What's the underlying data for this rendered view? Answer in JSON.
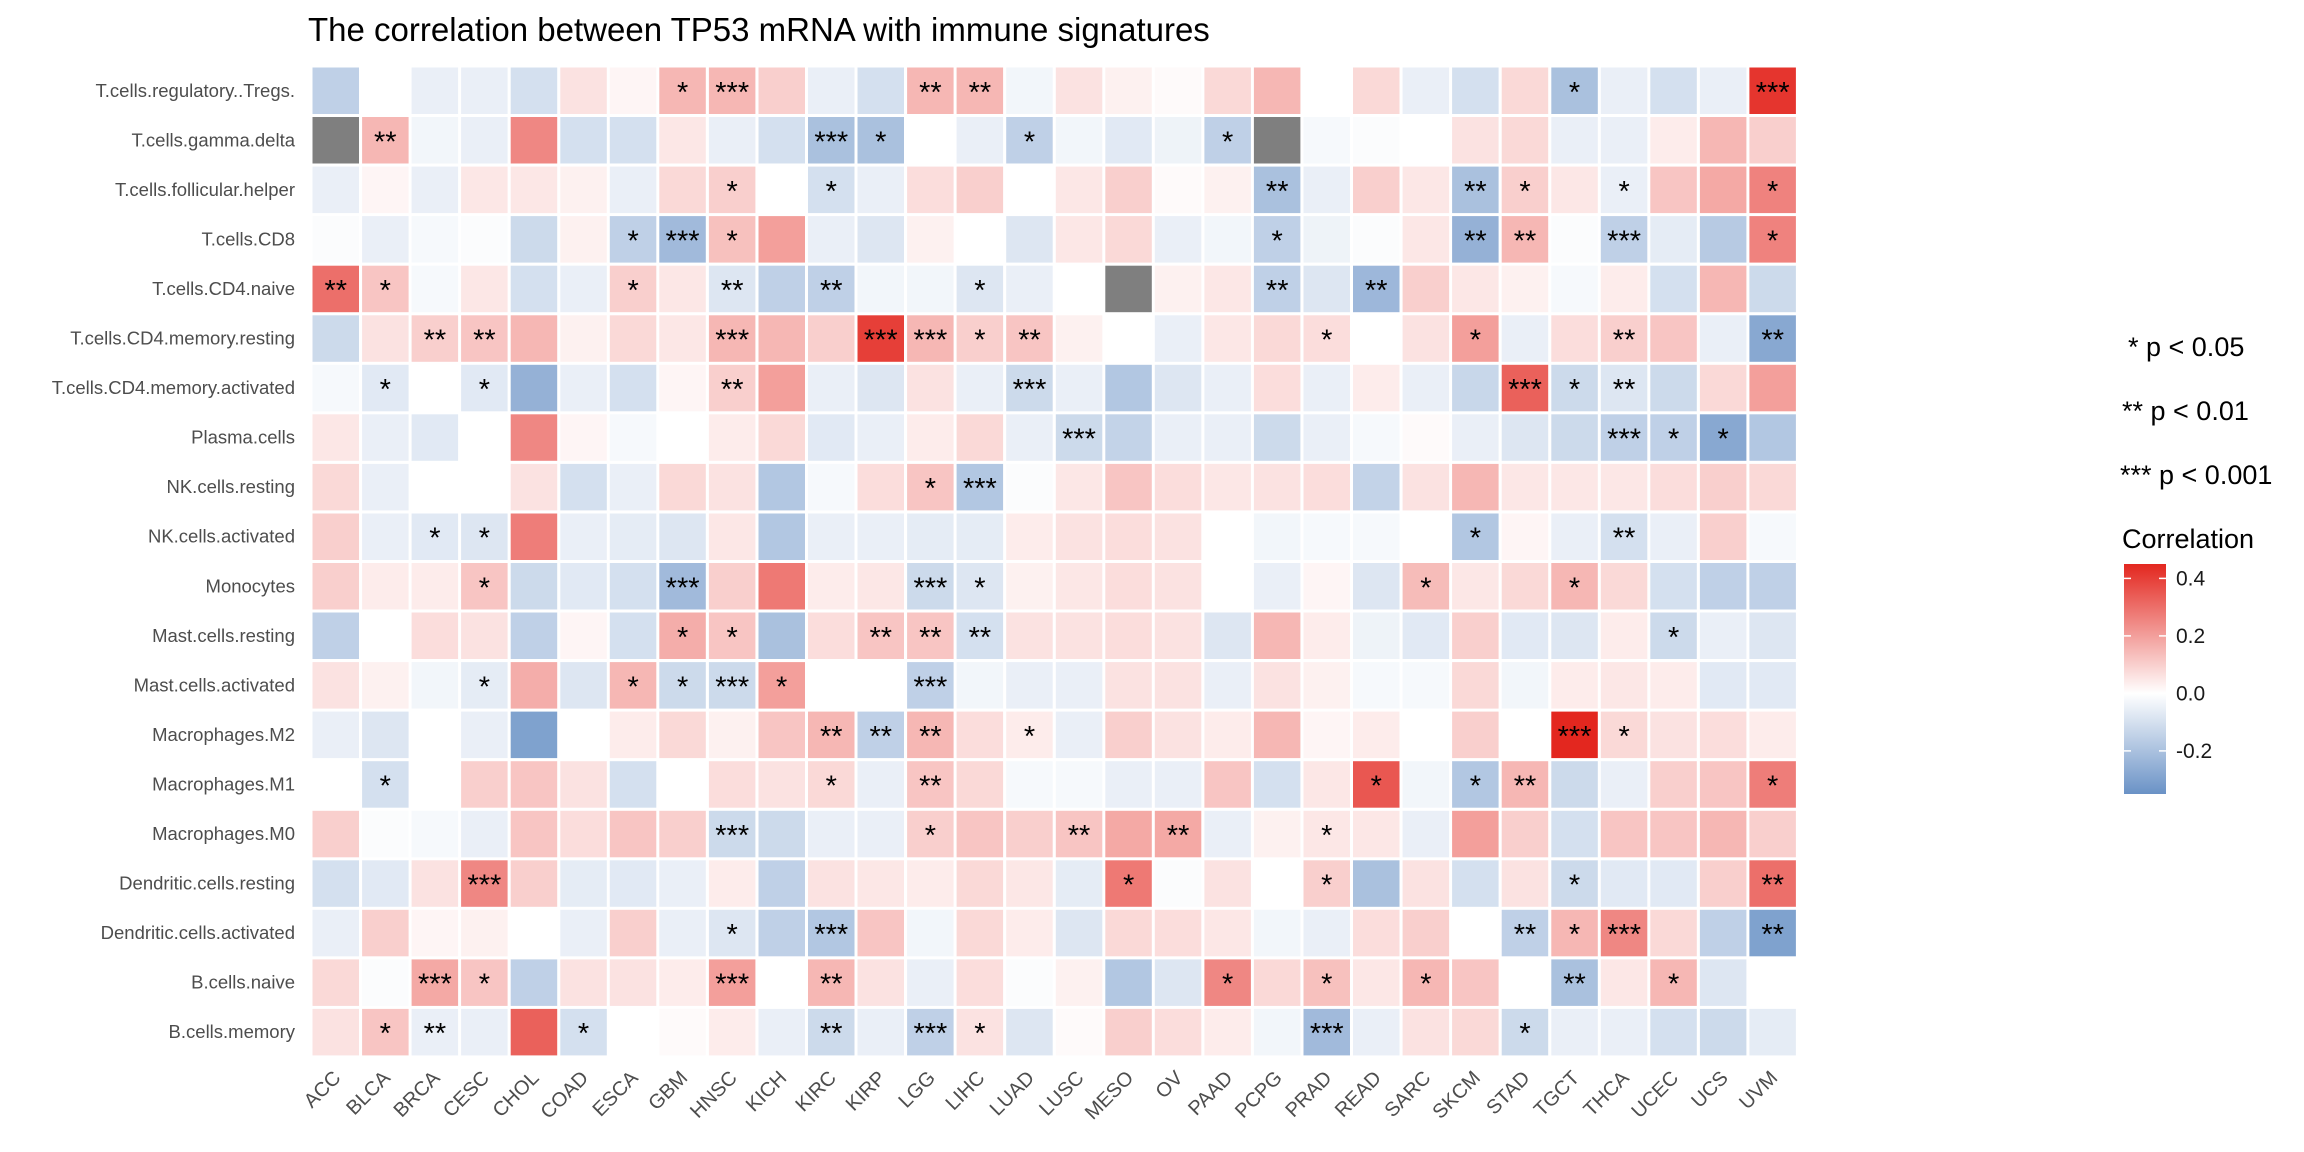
{
  "chart_data": {
    "type": "heatmap",
    "title": "The correlation between TP53 mRNA with immune signatures",
    "xlabel": "",
    "ylabel": "",
    "x_categories": [
      "ACC",
      "BLCA",
      "BRCA",
      "CESC",
      "CHOL",
      "COAD",
      "ESCA",
      "GBM",
      "HNSC",
      "KICH",
      "KIRC",
      "KIRP",
      "LGG",
      "LIHC",
      "LUAD",
      "LUSC",
      "MESO",
      "OV",
      "PAAD",
      "PCPG",
      "PRAD",
      "READ",
      "SARC",
      "SKCM",
      "STAD",
      "TGCT",
      "THCA",
      "UCEC",
      "UCS",
      "UVM"
    ],
    "y_categories": [
      "T.cells.regulatory..Tregs.",
      "T.cells.gamma.delta",
      "T.cells.follicular.helper",
      "T.cells.CD8",
      "T.cells.CD4.naive",
      "T.cells.CD4.memory.resting",
      "T.cells.CD4.memory.activated",
      "Plasma.cells",
      "NK.cells.resting",
      "NK.cells.activated",
      "Monocytes",
      "Mast.cells.resting",
      "Mast.cells.activated",
      "Macrophages.M2",
      "Macrophages.M1",
      "Macrophages.M0",
      "Dendritic.cells.resting",
      "Dendritic.cells.activated",
      "B.cells.naive",
      "B.cells.memory"
    ],
    "values": [
      [
        -0.15,
        0.0,
        -0.05,
        -0.05,
        -0.1,
        0.06,
        0.02,
        0.15,
        0.15,
        0.1,
        -0.05,
        -0.1,
        0.15,
        0.15,
        -0.03,
        0.06,
        0.03,
        0.01,
        0.08,
        0.15,
        0.0,
        0.08,
        -0.05,
        -0.1,
        0.08,
        -0.2,
        -0.05,
        -0.1,
        -0.05,
        0.42
      ],
      [
        null,
        0.15,
        -0.03,
        -0.05,
        0.25,
        -0.1,
        -0.1,
        0.05,
        -0.05,
        -0.1,
        -0.2,
        -0.2,
        0.0,
        -0.05,
        -0.15,
        -0.03,
        -0.07,
        -0.04,
        -0.15,
        null,
        -0.02,
        -0.01,
        0.0,
        0.06,
        0.08,
        -0.05,
        -0.05,
        0.04,
        0.15,
        0.1
      ],
      [
        -0.05,
        0.02,
        -0.05,
        0.05,
        0.05,
        0.03,
        -0.05,
        0.08,
        0.1,
        0.0,
        -0.1,
        -0.05,
        0.07,
        0.1,
        0.0,
        0.05,
        0.1,
        0.01,
        0.03,
        -0.2,
        -0.05,
        0.1,
        0.05,
        -0.2,
        0.1,
        0.05,
        -0.05,
        0.12,
        0.18,
        0.26
      ],
      [
        -0.01,
        -0.05,
        -0.02,
        -0.01,
        -0.12,
        0.03,
        -0.15,
        -0.22,
        0.13,
        0.2,
        -0.05,
        -0.08,
        0.03,
        0.0,
        -0.08,
        0.05,
        0.08,
        -0.05,
        -0.03,
        -0.15,
        -0.04,
        -0.01,
        0.05,
        -0.25,
        0.15,
        -0.01,
        -0.15,
        -0.06,
        -0.17,
        0.26
      ],
      [
        0.3,
        0.12,
        -0.02,
        0.05,
        -0.1,
        -0.05,
        0.1,
        0.05,
        -0.08,
        -0.15,
        -0.15,
        -0.03,
        -0.03,
        -0.08,
        -0.05,
        0.0,
        null,
        0.03,
        0.05,
        -0.15,
        -0.08,
        -0.23,
        0.1,
        0.05,
        0.03,
        -0.02,
        0.04,
        -0.1,
        0.15,
        -0.12
      ],
      [
        -0.12,
        0.06,
        0.1,
        0.12,
        0.15,
        0.03,
        0.08,
        0.05,
        0.15,
        0.15,
        0.1,
        0.4,
        0.15,
        0.1,
        0.12,
        0.03,
        0.0,
        -0.05,
        0.05,
        0.08,
        0.07,
        0.0,
        0.06,
        0.2,
        -0.05,
        0.07,
        0.1,
        0.12,
        -0.05,
        -0.28
      ],
      [
        -0.02,
        -0.07,
        0.0,
        -0.07,
        -0.25,
        -0.05,
        -0.1,
        0.02,
        0.1,
        0.2,
        -0.05,
        -0.08,
        0.06,
        -0.05,
        -0.12,
        -0.05,
        -0.18,
        -0.08,
        -0.05,
        0.07,
        -0.05,
        0.04,
        -0.05,
        -0.13,
        0.33,
        -0.12,
        -0.08,
        -0.12,
        0.08,
        0.2
      ],
      [
        0.05,
        -0.05,
        -0.07,
        0.0,
        0.25,
        0.02,
        -0.02,
        0.0,
        0.04,
        0.08,
        -0.07,
        -0.05,
        0.04,
        0.08,
        -0.05,
        -0.12,
        -0.14,
        -0.05,
        -0.05,
        -0.12,
        -0.05,
        -0.02,
        0.01,
        -0.05,
        -0.08,
        -0.12,
        -0.15,
        -0.15,
        -0.28,
        -0.18
      ],
      [
        0.08,
        -0.05,
        0.0,
        0.0,
        0.06,
        -0.1,
        -0.05,
        0.08,
        0.06,
        -0.18,
        -0.02,
        0.07,
        0.12,
        -0.18,
        -0.01,
        0.05,
        0.12,
        0.07,
        0.05,
        0.06,
        0.07,
        -0.14,
        0.06,
        0.15,
        0.05,
        0.05,
        0.05,
        0.07,
        0.1,
        0.08
      ],
      [
        0.1,
        -0.05,
        -0.07,
        -0.08,
        0.27,
        -0.05,
        -0.06,
        -0.08,
        0.05,
        -0.18,
        -0.05,
        -0.05,
        -0.06,
        -0.06,
        0.04,
        0.06,
        0.07,
        0.06,
        0.0,
        -0.03,
        -0.02,
        -0.02,
        0.0,
        -0.18,
        0.02,
        -0.05,
        -0.1,
        -0.05,
        0.1,
        -0.02
      ],
      [
        0.1,
        0.04,
        0.04,
        0.12,
        -0.12,
        -0.07,
        -0.1,
        -0.22,
        0.1,
        0.28,
        0.04,
        0.05,
        -0.12,
        -0.08,
        0.03,
        0.05,
        0.07,
        0.06,
        0.0,
        -0.05,
        0.02,
        -0.08,
        0.14,
        0.05,
        0.08,
        0.15,
        0.08,
        -0.1,
        -0.15,
        -0.15
      ],
      [
        -0.15,
        0.0,
        0.07,
        0.06,
        -0.15,
        0.02,
        -0.1,
        0.17,
        0.12,
        -0.2,
        0.07,
        0.12,
        0.12,
        -0.1,
        0.06,
        0.06,
        0.07,
        0.06,
        -0.08,
        0.15,
        0.04,
        -0.04,
        -0.07,
        0.1,
        -0.07,
        -0.08,
        0.04,
        -0.12,
        -0.05,
        -0.08
      ],
      [
        0.06,
        0.03,
        -0.03,
        -0.06,
        0.17,
        -0.08,
        0.15,
        -0.12,
        -0.12,
        0.2,
        0.0,
        0.0,
        -0.15,
        -0.03,
        -0.05,
        -0.05,
        0.06,
        0.06,
        -0.05,
        0.06,
        0.03,
        -0.02,
        -0.02,
        0.08,
        -0.03,
        0.04,
        0.05,
        0.04,
        -0.07,
        -0.07
      ],
      [
        -0.05,
        -0.08,
        0.0,
        -0.05,
        -0.3,
        0.0,
        0.04,
        0.08,
        0.03,
        0.12,
        0.15,
        -0.15,
        0.15,
        0.07,
        0.04,
        -0.05,
        0.1,
        0.06,
        0.04,
        0.15,
        0.02,
        0.04,
        0.0,
        0.1,
        0.0,
        0.45,
        0.08,
        0.06,
        0.07,
        0.04
      ],
      [
        0.0,
        -0.1,
        0.0,
        0.1,
        0.12,
        0.06,
        -0.1,
        0.0,
        0.07,
        0.06,
        0.08,
        -0.05,
        0.12,
        0.08,
        -0.02,
        -0.02,
        -0.05,
        -0.05,
        0.12,
        -0.1,
        0.05,
        0.35,
        -0.03,
        -0.18,
        0.15,
        -0.12,
        -0.05,
        0.1,
        0.12,
        0.27
      ],
      [
        0.1,
        -0.01,
        -0.02,
        -0.05,
        0.12,
        0.07,
        0.12,
        0.1,
        -0.12,
        -0.12,
        -0.05,
        -0.05,
        0.1,
        0.12,
        0.1,
        0.12,
        0.18,
        0.18,
        -0.05,
        0.03,
        0.05,
        0.05,
        -0.05,
        0.2,
        0.1,
        -0.1,
        0.12,
        0.12,
        0.15,
        0.1
      ],
      [
        -0.1,
        -0.07,
        0.06,
        0.25,
        0.1,
        -0.06,
        -0.07,
        -0.05,
        0.04,
        -0.15,
        0.06,
        0.05,
        0.04,
        0.08,
        0.05,
        -0.06,
        0.28,
        -0.01,
        0.06,
        0.0,
        0.1,
        -0.2,
        0.06,
        -0.1,
        0.06,
        -0.12,
        -0.07,
        -0.07,
        0.1,
        0.3
      ],
      [
        -0.05,
        0.1,
        0.02,
        0.03,
        0.0,
        -0.05,
        0.1,
        -0.05,
        -0.08,
        -0.15,
        -0.18,
        0.12,
        -0.03,
        0.08,
        0.04,
        -0.08,
        0.08,
        0.07,
        0.05,
        -0.03,
        -0.05,
        0.07,
        0.1,
        0.0,
        -0.15,
        0.15,
        0.25,
        0.08,
        -0.15,
        -0.3
      ],
      [
        0.08,
        -0.01,
        0.18,
        0.12,
        -0.15,
        0.06,
        0.06,
        0.04,
        0.2,
        0.0,
        0.15,
        0.06,
        -0.05,
        0.07,
        -0.01,
        0.03,
        -0.18,
        -0.08,
        0.25,
        0.08,
        0.13,
        0.05,
        0.15,
        0.12,
        0.0,
        -0.2,
        0.05,
        0.15,
        -0.08,
        0.0
      ],
      [
        0.06,
        0.12,
        -0.05,
        -0.05,
        0.33,
        -0.1,
        0.0,
        0.01,
        0.04,
        -0.05,
        -0.12,
        -0.05,
        -0.15,
        0.06,
        -0.08,
        0.01,
        0.1,
        0.07,
        0.04,
        -0.03,
        -0.22,
        -0.05,
        0.06,
        0.08,
        -0.12,
        -0.05,
        -0.05,
        -0.1,
        -0.12,
        -0.06
      ]
    ],
    "significance": [
      [
        "",
        "",
        "",
        "",
        "",
        "",
        "",
        "*",
        "***",
        "",
        "",
        "",
        "**",
        "**",
        "",
        "",
        "",
        "",
        "",
        "",
        "",
        "",
        "",
        "",
        "",
        "*",
        "",
        "",
        "",
        "***"
      ],
      [
        "",
        "**",
        "",
        "",
        "",
        "",
        "",
        "",
        "",
        "",
        "***",
        "*",
        "",
        "",
        "*",
        "",
        "",
        "",
        "*",
        "",
        "",
        "",
        "",
        "",
        "",
        "",
        "",
        "",
        "",
        ""
      ],
      [
        "",
        "",
        "",
        "",
        "",
        "",
        "",
        "",
        "*",
        "",
        "*",
        "",
        "",
        "",
        "",
        "",
        "",
        "",
        "",
        "**",
        "",
        "",
        "",
        "**",
        "*",
        "",
        "*",
        "",
        "",
        "*"
      ],
      [
        "",
        "",
        "",
        "",
        "",
        "",
        "*",
        "***",
        "*",
        "",
        "",
        "",
        "",
        "",
        "",
        "",
        "",
        "",
        "",
        "*",
        "",
        "",
        "",
        "**",
        "**",
        "",
        "***",
        "",
        "",
        "*"
      ],
      [
        "**",
        "*",
        "",
        "",
        "",
        "",
        "*",
        "",
        "**",
        "",
        "**",
        "",
        "",
        "*",
        "",
        "",
        "",
        "",
        "",
        "**",
        "",
        "**",
        "",
        "",
        "",
        "",
        "",
        "",
        "",
        ""
      ],
      [
        "",
        "",
        "**",
        "**",
        "",
        "",
        "",
        "",
        "***",
        "",
        "",
        "***",
        "***",
        "*",
        "**",
        "",
        "",
        "",
        "",
        "",
        "*",
        "",
        "",
        "*",
        "",
        "",
        "**",
        "",
        "",
        "**"
      ],
      [
        "",
        "*",
        "",
        "*",
        "",
        "",
        "",
        "",
        "**",
        "",
        "",
        "",
        "",
        "",
        "***",
        "",
        "",
        "",
        "",
        "",
        "",
        "",
        "",
        "",
        "***",
        "*",
        "**",
        "",
        "",
        ""
      ],
      [
        "",
        "",
        "",
        "",
        "",
        "",
        "",
        "",
        "",
        "",
        "",
        "",
        "",
        "",
        "",
        "***",
        "",
        "",
        "",
        "",
        "",
        "",
        "",
        "",
        "",
        "",
        "***",
        "*",
        "*",
        ""
      ],
      [
        "",
        "",
        "",
        "",
        "",
        "",
        "",
        "",
        "",
        "",
        "",
        "",
        "*",
        "***",
        "",
        "",
        "",
        "",
        "",
        "",
        "",
        "",
        "",
        "",
        "",
        "",
        "",
        "",
        "",
        ""
      ],
      [
        "",
        "",
        "*",
        "*",
        "",
        "",
        "",
        "",
        "",
        "",
        "",
        "",
        "",
        "",
        "",
        "",
        "",
        "",
        "",
        "",
        "",
        "",
        "",
        "*",
        "",
        "",
        "**",
        "",
        "",
        ""
      ],
      [
        "",
        "",
        "",
        "*",
        "",
        "",
        "",
        "***",
        "",
        "",
        "",
        "",
        "***",
        "*",
        "",
        "",
        "",
        "",
        "",
        "",
        "",
        "",
        "*",
        "",
        "",
        "*",
        "",
        "",
        "",
        ""
      ],
      [
        "",
        "",
        "",
        "",
        "",
        "",
        "",
        "*",
        "*",
        "",
        "",
        "**",
        "**",
        "**",
        "",
        "",
        "",
        "",
        "",
        "",
        "",
        "",
        "",
        "",
        "",
        "",
        "",
        "*",
        "",
        ""
      ],
      [
        "",
        "",
        "",
        "*",
        "",
        "",
        "*",
        "*",
        "***",
        "*",
        "",
        "",
        "***",
        "",
        "",
        "",
        "",
        "",
        "",
        "",
        "",
        "",
        "",
        "",
        "",
        "",
        "",
        "",
        "",
        ""
      ],
      [
        "",
        "",
        "",
        "",
        "",
        "",
        "",
        "",
        "",
        "",
        "**",
        "**",
        "**",
        "",
        "*",
        "",
        "",
        "",
        "",
        "",
        "",
        "",
        "",
        "",
        "",
        "***",
        "*",
        "",
        "",
        ""
      ],
      [
        "",
        "*",
        "",
        "",
        "",
        "",
        "",
        "",
        "",
        "",
        "*",
        "",
        "**",
        "",
        "",
        "",
        "",
        "",
        "",
        "",
        "",
        "*",
        "",
        "*",
        "**",
        "",
        "",
        "",
        "",
        "*"
      ],
      [
        "",
        "",
        "",
        "",
        "",
        "",
        "",
        "",
        "***",
        "",
        "",
        "",
        "*",
        "",
        "",
        "**",
        "",
        "**",
        "",
        "",
        "*",
        "",
        "",
        "",
        "",
        "",
        "",
        "",
        "",
        ""
      ],
      [
        "",
        "",
        "",
        "***",
        "",
        "",
        "",
        "",
        "",
        "",
        "",
        "",
        "",
        "",
        "",
        "",
        "*",
        "",
        "",
        "",
        "*",
        "",
        "",
        "",
        "",
        "*",
        "",
        "",
        "",
        "**"
      ],
      [
        "",
        "",
        "",
        "",
        "",
        "",
        "",
        "",
        "*",
        "",
        "***",
        "",
        "",
        "",
        "",
        "",
        "",
        "",
        "",
        "",
        "",
        "",
        "",
        "",
        "**",
        "*",
        "***",
        "",
        "",
        "**"
      ],
      [
        "",
        "",
        "***",
        "*",
        "",
        "",
        "",
        "",
        "***",
        "",
        "**",
        "",
        "",
        "",
        "",
        "",
        "",
        "",
        "*",
        "",
        "*",
        "",
        "*",
        "",
        "",
        "**",
        "",
        "*",
        "",
        ""
      ],
      [
        "",
        "*",
        "**",
        "",
        "",
        "*",
        "",
        "",
        "",
        "",
        "**",
        "",
        "***",
        "*",
        "",
        "",
        "",
        "",
        "",
        "",
        "***",
        "",
        "",
        "",
        "*",
        "",
        "",
        "",
        "",
        ""
      ]
    ],
    "na_color": "#7f7f7f",
    "color_scale": {
      "low": "#6a92c6",
      "mid": "#ffffff",
      "high": "#e3271f",
      "min": -0.35,
      "max": 0.45
    },
    "legend": {
      "title": "Correlation",
      "ticks": [
        "0.4",
        "0.2",
        "0.0",
        "-0.2"
      ],
      "tick_values": [
        0.4,
        0.2,
        0.0,
        -0.2
      ],
      "position": "right"
    },
    "annotations": [
      "* p < 0.05",
      "** p < 0.01",
      "*** p < 0.001"
    ],
    "grid": false
  }
}
